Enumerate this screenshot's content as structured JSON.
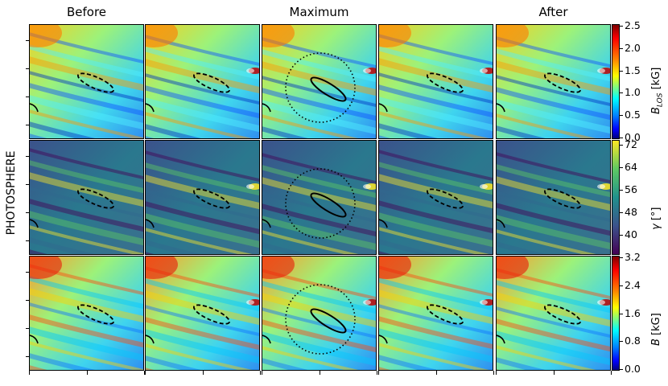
{
  "column_titles": [
    "Before",
    "Maximum",
    "After"
  ],
  "row_label": "PHOTOSPHERE",
  "colorbars": [
    {
      "label": "B_LOS [kG]",
      "label_main": "B",
      "label_sub": "LOS",
      "label_unit": " [kG]",
      "ticks": [
        "2.5",
        "2.0",
        "1.5",
        "1.0",
        "0.5",
        "0.0"
      ],
      "colormap": "jet"
    },
    {
      "label": "γ [°]",
      "label_main": "γ",
      "label_sub": "",
      "label_unit": " [°]",
      "ticks": [
        "72",
        "64",
        "56",
        "48",
        "40"
      ],
      "colormap": "viridis"
    },
    {
      "label": "B [kG]",
      "label_main": "B",
      "label_sub": "",
      "label_unit": " [kG]",
      "ticks": [
        "3.2",
        "2.4",
        "1.6",
        "0.8",
        "0.0"
      ],
      "colormap": "jet"
    }
  ],
  "grid": {
    "rows": 3,
    "columns": 5
  },
  "overlays": {
    "dashed_ellipse": "before/after contour",
    "solid_ellipse": "maximum contour",
    "dotted_circle": "maximum region"
  }
}
